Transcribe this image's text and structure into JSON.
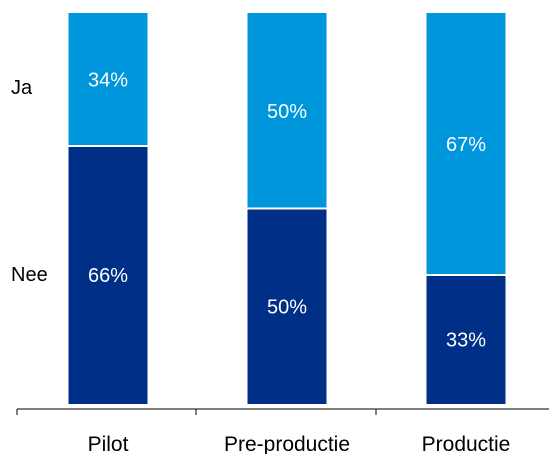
{
  "chart_data": {
    "type": "bar",
    "stacked": true,
    "normalized": true,
    "categories": [
      "Pilot",
      "Pre-productie",
      "Productie"
    ],
    "series": [
      {
        "name": "Nee",
        "values": [
          66,
          50,
          33
        ],
        "labels": [
          "66%",
          "50%",
          "33%"
        ],
        "color": "#002f87"
      },
      {
        "name": "Ja",
        "values": [
          34,
          50,
          67
        ],
        "labels": [
          "34%",
          "50%",
          "67%"
        ],
        "color": "#0096dc"
      }
    ],
    "legend": {
      "placement": "left",
      "entries": [
        "Ja",
        "Nee"
      ]
    },
    "ylim": [
      0,
      100
    ],
    "grid": false,
    "segment_separator_color": "#ffffff",
    "axis_color": "#000000",
    "label_color": "#ffffff",
    "text_color": "#000000"
  }
}
